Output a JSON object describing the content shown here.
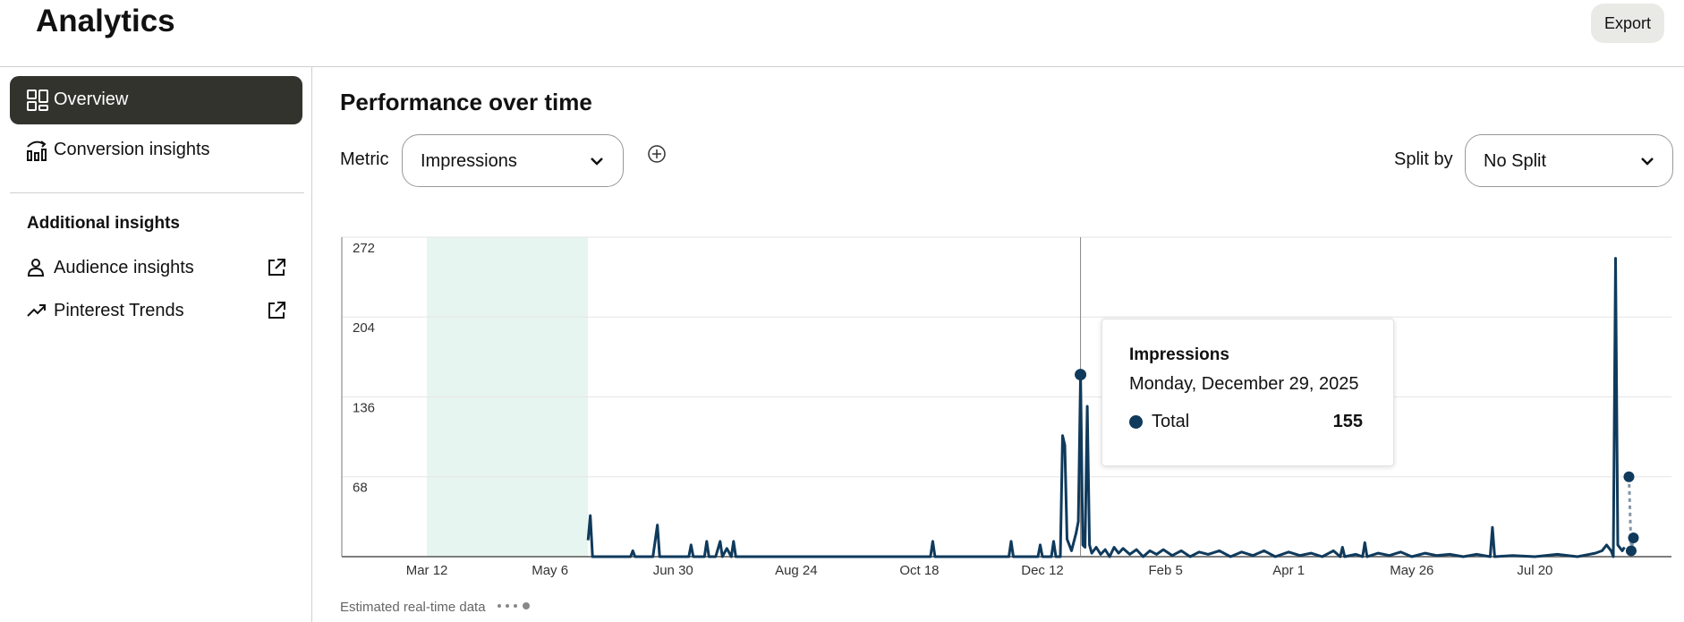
{
  "header": {
    "title": "Analytics",
    "export": "Export"
  },
  "sidebar": {
    "nav": [
      "Overview",
      "Conversion insights"
    ],
    "section_title": "Additional insights",
    "links": [
      "Audience insights",
      "Pinterest Trends"
    ]
  },
  "panel": {
    "title": "Performance over time",
    "metric_label": "Metric",
    "metric": "Impressions",
    "split_label": "Split by",
    "split": "No Split"
  },
  "chart_data": {
    "type": "line",
    "xlim": [
      "Feb 2",
      "Sep 19"
    ],
    "xticks": [
      "Mar 12",
      "May 6",
      "Jun 30",
      "Aug 24",
      "Oct 18",
      "Dec 12",
      "Feb 5",
      "Apr 1",
      "May 26",
      "Jul 20"
    ],
    "ylim": [
      0,
      272
    ],
    "yticks": [
      68,
      136,
      204,
      272
    ],
    "grid": true,
    "highlight_range": [
      "Mar 12",
      "May 23"
    ],
    "series": [
      {
        "name": "Total",
        "color": "#0f3a5c",
        "x": [
          "May 23",
          "May 24",
          "May 25",
          "Jun 11",
          "Jun 12",
          "Jun 13",
          "Jun 21",
          "Jun 23",
          "Jun 24",
          "Jul 7",
          "Jul 8",
          "Jul 9",
          "Jul 14",
          "Jul 15",
          "Jul 16",
          "Jul 19",
          "Jul 21",
          "Jul 22",
          "Jul 24",
          "Jul 26",
          "Jul 27",
          "Jul 28",
          "Oct 23",
          "Oct 24",
          "Oct 25",
          "Nov 27",
          "Nov 28",
          "Nov 29",
          "Dec 10",
          "Dec 11",
          "Dec 12",
          "Dec 16",
          "Dec 17",
          "Dec 18",
          "Dec 20",
          "Dec 21",
          "Dec 22",
          "Dec 23",
          "Dec 25",
          "Dec 27",
          "Dec 28",
          "Dec 29",
          "Dec 30",
          "Dec 31",
          "Jan 1",
          "Jan 2",
          "Jan 3",
          "Jan 5",
          "Jan 7",
          "Jan 9",
          "Jan 11",
          "Jan 13",
          "Jan 15",
          "Jan 17",
          "Jan 20",
          "Jan 23",
          "Jan 26",
          "Jan 29",
          "Feb 1",
          "Feb 4",
          "Feb 8",
          "Feb 12",
          "Feb 16",
          "Feb 20",
          "Feb 24",
          "Mar 1",
          "Mar 6",
          "Mar 11",
          "Mar 16",
          "Mar 21",
          "Mar 26",
          "Apr 1",
          "Apr 6",
          "Apr 11",
          "Apr 16",
          "Apr 21",
          "Apr 24",
          "Apr 25",
          "Apr 26",
          "May 1",
          "May 4",
          "May 5",
          "May 6",
          "May 11",
          "May 16",
          "May 21",
          "May 26",
          "Jun 1",
          "Jun 6",
          "Jun 12",
          "Jun 18",
          "Jun 24",
          "Jun 30",
          "Jul 1",
          "Jul 2",
          "Jul 10",
          "Jul 20",
          "Jul 30",
          "Aug 8",
          "Aug 16",
          "Aug 19",
          "Aug 21",
          "Aug 23",
          "Aug 24",
          "Aug 25",
          "Aug 26",
          "Aug 28",
          "Aug 29"
        ],
        "values": [
          14,
          35,
          0,
          0,
          5,
          0,
          0,
          27,
          0,
          0,
          10,
          0,
          0,
          13,
          0,
          0,
          13,
          0,
          7,
          0,
          13,
          0,
          0,
          13,
          0,
          0,
          13,
          0,
          0,
          10,
          0,
          0,
          13,
          0,
          0,
          103,
          95,
          15,
          5,
          20,
          30,
          155,
          10,
          8,
          128,
          10,
          3,
          8,
          2,
          6,
          0,
          8,
          3,
          7,
          2,
          6,
          0,
          5,
          2,
          6,
          1,
          5,
          0,
          4,
          2,
          5,
          0,
          4,
          1,
          5,
          0,
          4,
          1,
          3,
          0,
          5,
          0,
          8,
          0,
          2,
          0,
          12,
          0,
          3,
          1,
          4,
          0,
          3,
          1,
          2,
          0,
          2,
          0,
          25,
          0,
          1,
          0,
          2,
          0,
          3,
          5,
          10,
          5,
          0,
          254,
          10,
          5,
          8
        ]
      },
      {
        "name": "Estimated real-time data",
        "color": "#8495a6",
        "dashed": true,
        "x": [
          "Aug 31",
          "Sep 1",
          "Sep 2"
        ],
        "values": [
          68,
          5,
          16
        ]
      }
    ],
    "tooltip": {
      "title": "Impressions",
      "date": "Monday, December 29, 2025",
      "x": "Dec 29",
      "value": 155
    }
  }
}
